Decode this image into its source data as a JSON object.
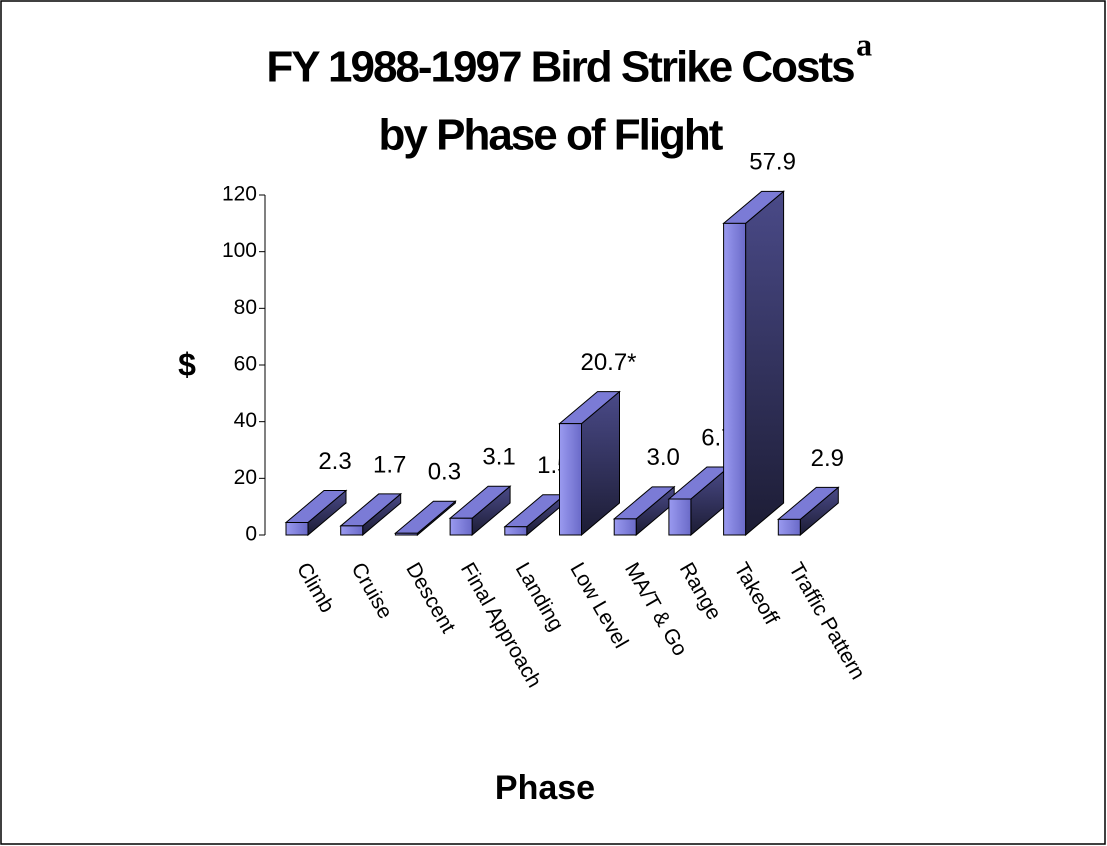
{
  "chart_data": {
    "type": "bar3d",
    "title": [
      "FY 1988-1997 Bird Strike Costs",
      "by Phase of Flight"
    ],
    "title_superscript": "a",
    "x_label": "Phase",
    "y_label": "$",
    "categories": [
      "Climb",
      "Cruise",
      "Descent",
      "Final Approach",
      "Landing",
      "Low Level",
      "MA/T & Go",
      "Range",
      "Takeoff",
      "Traffic Pattern"
    ],
    "values": [
      4.4,
      3.2,
      0.6,
      5.9,
      2.9,
      39.3,
      5.7,
      12.7,
      110,
      5.5
    ],
    "annotations": [
      "2.3",
      "1.7",
      "0.3",
      "3.1",
      "1.5",
      "20.7*",
      "3.0",
      "6.7",
      "57.9",
      "2.9"
    ],
    "color": "#7b7bd6",
    "ylim": [
      0,
      120
    ],
    "yticks": [
      0,
      20,
      40,
      60,
      80,
      100,
      120
    ]
  }
}
